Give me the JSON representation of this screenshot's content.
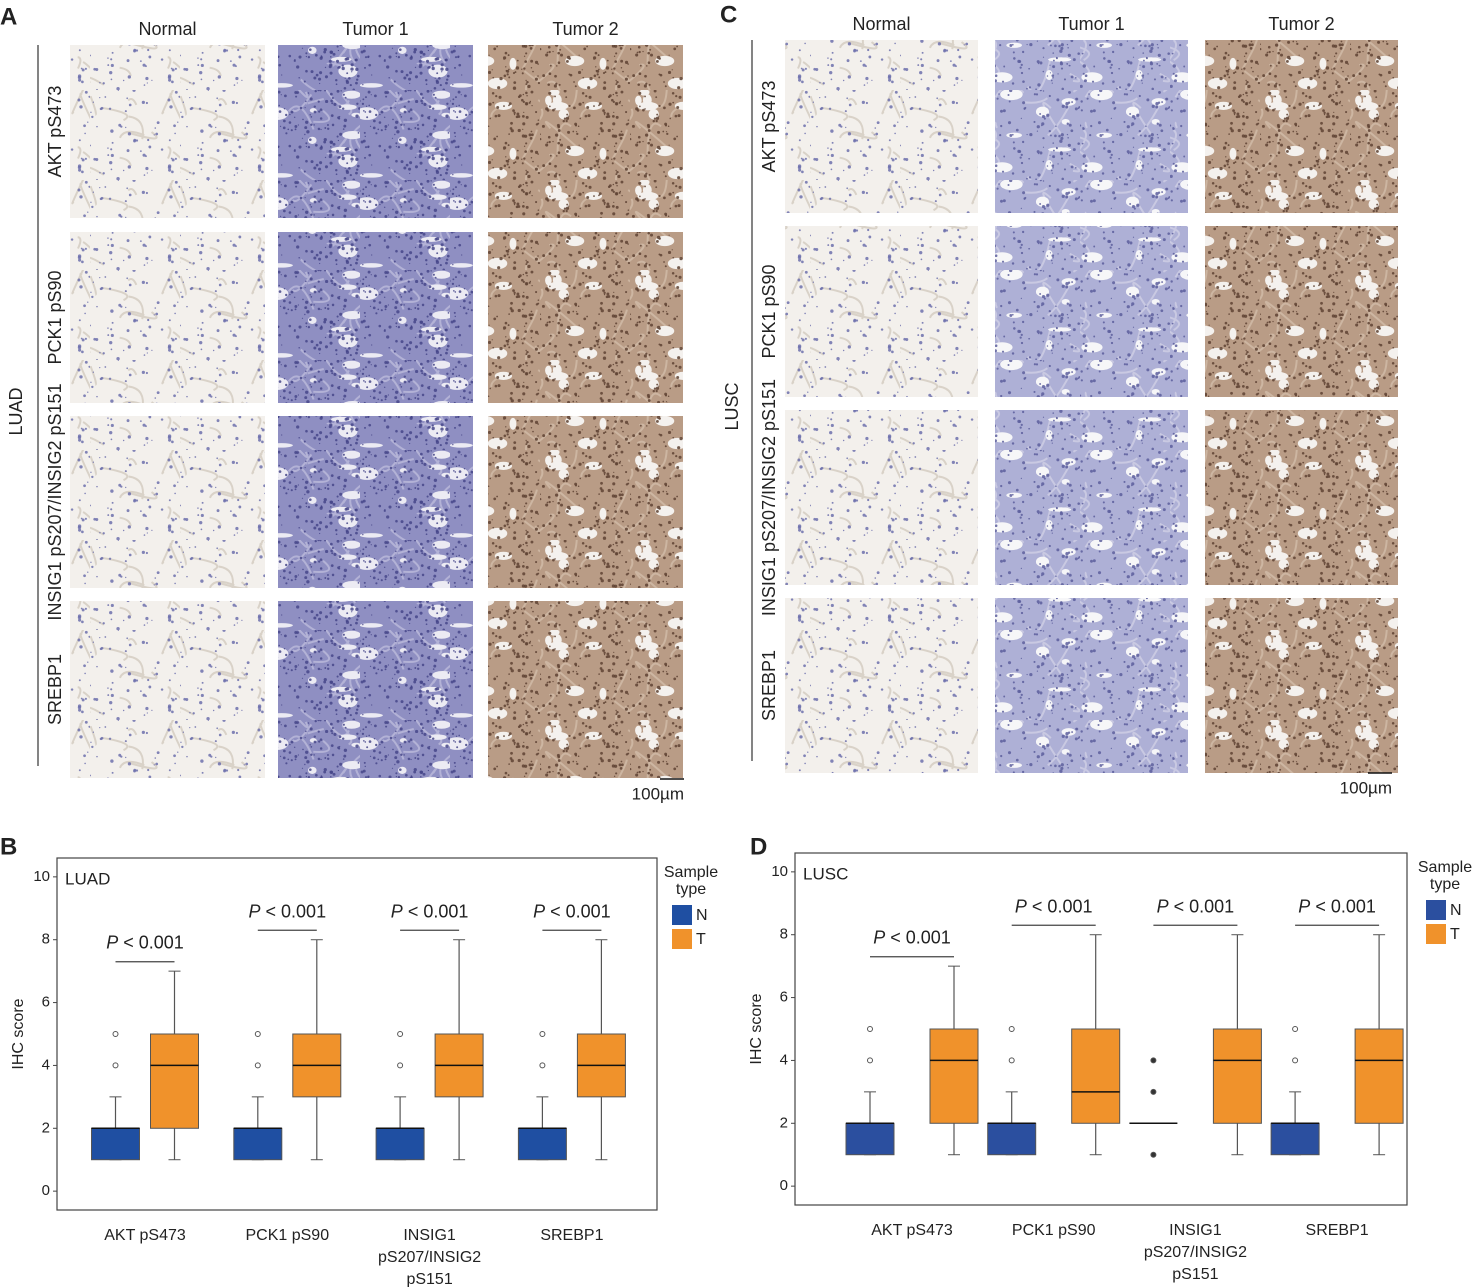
{
  "panels": [
    {
      "letter": "A",
      "group": "LUAD",
      "columns": [
        "Normal",
        "Tumor 1",
        "Tumor 2"
      ],
      "rows": [
        "AKT pS473",
        "PCK1 pS90",
        "INSIG1 pS207/INSIG2 pS151",
        "SREBP1"
      ],
      "scale_bar": "100µm"
    },
    {
      "letter": "C",
      "group": "LUSC",
      "columns": [
        "Normal",
        "Tumor 1",
        "Tumor 2"
      ],
      "rows": [
        "AKT pS473",
        "PCK1 pS90",
        "INSIG1 pS207/INSIG2 pS151",
        "SREBP1"
      ],
      "scale_bar": "100µm"
    }
  ],
  "chart_data": [
    {
      "letter": "B",
      "type": "box",
      "title": "LUAD",
      "ylabel": "IHC score",
      "categories": [
        "AKT pS473",
        "PCK1 pS90",
        "INSIG1 pS207/INSIG2 pS151",
        "SREBP1"
      ],
      "ylim": [
        -0.6,
        10.6
      ],
      "yticks": [
        0,
        2,
        4,
        6,
        8,
        10
      ],
      "legend_title": "Sample type",
      "legend": "right",
      "series": [
        {
          "name": "N",
          "color": "#1f4fa2",
          "values": [
            {
              "min": 1,
              "q1": 1,
              "median": 2,
              "q3": 2,
              "max": 3,
              "outliers": [
                4,
                5
              ]
            },
            {
              "min": 1,
              "q1": 1,
              "median": 2,
              "q3": 2,
              "max": 3,
              "outliers": [
                4,
                5
              ]
            },
            {
              "min": 1,
              "q1": 1,
              "median": 2,
              "q3": 2,
              "max": 3,
              "outliers": [
                4,
                5
              ]
            },
            {
              "min": 1,
              "q1": 1,
              "median": 2,
              "q3": 2,
              "max": 3,
              "outliers": [
                4,
                5
              ]
            }
          ]
        },
        {
          "name": "T",
          "color": "#f0922b",
          "values": [
            {
              "min": 1,
              "q1": 2,
              "median": 4,
              "q3": 5,
              "max": 7,
              "outliers": []
            },
            {
              "min": 1,
              "q1": 3,
              "median": 4,
              "q3": 5,
              "max": 8,
              "outliers": []
            },
            {
              "min": 1,
              "q1": 3,
              "median": 4,
              "q3": 5,
              "max": 8,
              "outliers": []
            },
            {
              "min": 1,
              "q1": 3,
              "median": 4,
              "q3": 5,
              "max": 8,
              "outliers": []
            }
          ]
        }
      ],
      "annotations": [
        {
          "symbol": "P",
          "text": "< 0.001"
        },
        {
          "symbol": "P",
          "text": "< 0.001"
        },
        {
          "symbol": "P",
          "text": "< 0.001"
        },
        {
          "symbol": "P",
          "text": "< 0.001"
        }
      ]
    },
    {
      "letter": "D",
      "type": "box",
      "title": "LUSC",
      "ylabel": "IHC score",
      "categories": [
        "AKT pS473",
        "PCK1 pS90",
        "INSIG1 pS207/INSIG2 pS151",
        "SREBP1"
      ],
      "ylim": [
        -0.6,
        10.6
      ],
      "yticks": [
        0,
        2,
        4,
        6,
        8,
        10
      ],
      "legend_title": "Sample type",
      "legend": "right",
      "series": [
        {
          "name": "N",
          "color": "#2b4f9f",
          "values": [
            {
              "min": 1,
              "q1": 1,
              "median": 2,
              "q3": 2,
              "max": 3,
              "outliers": [
                4,
                5
              ]
            },
            {
              "min": 1,
              "q1": 1,
              "median": 2,
              "q3": 2,
              "max": 3,
              "outliers": [
                4,
                5
              ]
            },
            {
              "min": 2,
              "q1": 2,
              "median": 2,
              "q3": 2,
              "max": 2,
              "outliers": [
                1,
                3,
                4
              ]
            },
            {
              "min": 1,
              "q1": 1,
              "median": 2,
              "q3": 2,
              "max": 3,
              "outliers": [
                4,
                5
              ]
            }
          ]
        },
        {
          "name": "T",
          "color": "#f0922b",
          "values": [
            {
              "min": 1,
              "q1": 2,
              "median": 4,
              "q3": 5,
              "max": 7,
              "outliers": []
            },
            {
              "min": 1,
              "q1": 2,
              "median": 3,
              "q3": 5,
              "max": 8,
              "outliers": []
            },
            {
              "min": 1,
              "q1": 2,
              "median": 4,
              "q3": 5,
              "max": 8,
              "outliers": []
            },
            {
              "min": 1,
              "q1": 2,
              "median": 4,
              "q3": 5,
              "max": 8,
              "outliers": []
            }
          ]
        }
      ],
      "annotations": [
        {
          "symbol": "P",
          "text": "< 0.001"
        },
        {
          "symbol": "P",
          "text": "< 0.001"
        },
        {
          "symbol": "P",
          "text": "< 0.001"
        },
        {
          "symbol": "P",
          "text": "< 0.001"
        }
      ]
    }
  ]
}
